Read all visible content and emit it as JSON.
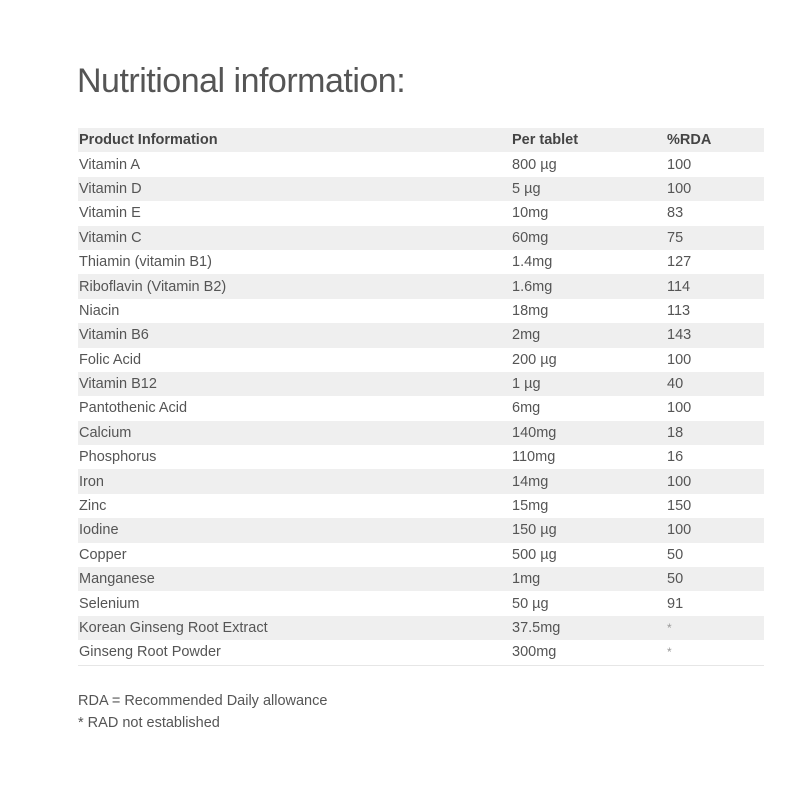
{
  "title": "Nutritional information:",
  "table": {
    "headers": [
      "Product Information",
      "Per tablet",
      "%RDA"
    ],
    "rows": [
      [
        "Vitamin A",
        "800 µg",
        "100"
      ],
      [
        "Vitamin D",
        "5 µg",
        "100"
      ],
      [
        "Vitamin E",
        "10mg",
        "83"
      ],
      [
        "Vitamin C",
        "60mg",
        "75"
      ],
      [
        "Thiamin (vitamin B1)",
        "1.4mg",
        "127"
      ],
      [
        "Riboflavin (Vitamin B2)",
        "1.6mg",
        "114"
      ],
      [
        "Niacin",
        "18mg",
        "113"
      ],
      [
        "Vitamin B6",
        "2mg",
        "143"
      ],
      [
        "Folic Acid",
        "200 µg",
        "100"
      ],
      [
        "Vitamin B12",
        "1 µg",
        "40"
      ],
      [
        "Pantothenic Acid",
        "6mg",
        "100"
      ],
      [
        "Calcium",
        "140mg",
        "18"
      ],
      [
        "Phosphorus",
        "110mg",
        "16"
      ],
      [
        "Iron",
        "14mg",
        "100"
      ],
      [
        "Zinc",
        "15mg",
        "150"
      ],
      [
        "Iodine",
        "150 µg",
        "100"
      ],
      [
        "Copper",
        "500 µg",
        "50"
      ],
      [
        "Manganese",
        "1mg",
        "50"
      ],
      [
        "Selenium",
        "50 µg",
        "91"
      ],
      [
        "Korean Ginseng Root Extract",
        "37.5mg",
        "*"
      ],
      [
        "Ginseng Root Powder",
        "300mg",
        "*"
      ]
    ]
  },
  "notes": [
    "RDA = Recommended Daily allowance",
    "* RAD not established"
  ]
}
